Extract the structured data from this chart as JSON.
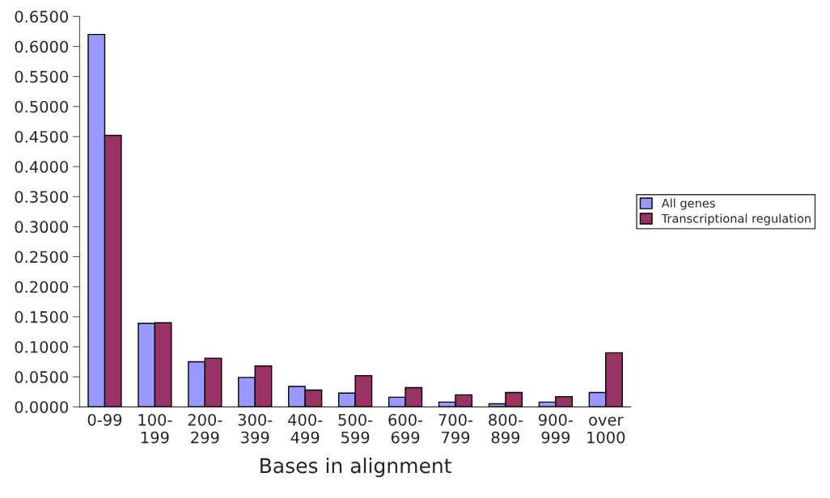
{
  "chart_data": {
    "type": "bar",
    "xlabel": "Bases in alignment",
    "categories": [
      "0-99",
      "100-\n199",
      "200-\n299",
      "300-\n399",
      "400-\n499",
      "500-\n599",
      "600-\n699",
      "700-\n799",
      "800-\n899",
      "900-\n999",
      "over\n1000"
    ],
    "series": [
      {
        "name": "All genes",
        "color": "#9999ff",
        "values": [
          0.62,
          0.139,
          0.075,
          0.049,
          0.034,
          0.023,
          0.016,
          0.008,
          0.005,
          0.008,
          0.024
        ]
      },
      {
        "name": "Transcriptional regulation",
        "color": "#993366",
        "values": [
          0.452,
          0.14,
          0.081,
          0.068,
          0.028,
          0.052,
          0.032,
          0.02,
          0.024,
          0.017,
          0.09
        ]
      }
    ],
    "ylim": [
      0,
      0.65
    ],
    "yticks": [
      {
        "value": 0,
        "label": "0.0000"
      },
      {
        "value": 0.05,
        "label": "0.0500"
      },
      {
        "value": 0.1,
        "label": "0.1000"
      },
      {
        "value": 0.15,
        "label": "0.1500"
      },
      {
        "value": 0.2,
        "label": "0.2000"
      },
      {
        "value": 0.25,
        "label": "0.2500"
      },
      {
        "value": 0.3,
        "label": "0.3000"
      },
      {
        "value": 0.35,
        "label": "0.3500"
      },
      {
        "value": 0.4,
        "label": "0.4000"
      },
      {
        "value": 0.45,
        "label": "0.4500"
      },
      {
        "value": 0.5,
        "label": "0.5000"
      },
      {
        "value": 0.55,
        "label": "0.5500"
      },
      {
        "value": 0.6,
        "label": "0.6000"
      },
      {
        "value": 0.65,
        "label": "0.6500"
      }
    ],
    "grid": false,
    "legend": "right"
  }
}
